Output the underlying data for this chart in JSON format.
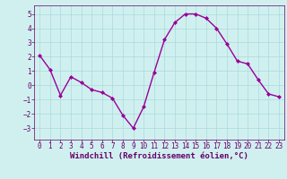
{
  "x": [
    0,
    1,
    2,
    3,
    4,
    5,
    6,
    7,
    8,
    9,
    10,
    11,
    12,
    13,
    14,
    15,
    16,
    17,
    18,
    19,
    20,
    21,
    22,
    23
  ],
  "y": [
    2.1,
    1.1,
    -0.7,
    0.6,
    0.2,
    -0.3,
    -0.5,
    -0.9,
    -2.1,
    -3.0,
    -1.5,
    0.9,
    3.2,
    4.4,
    5.0,
    5.0,
    4.7,
    4.0,
    2.9,
    1.7,
    1.5,
    0.4,
    -0.6,
    -0.8
  ],
  "line_color": "#990099",
  "marker": "D",
  "marker_size": 2,
  "bg_color": "#d0f0f0",
  "grid_color": "#aadada",
  "xlabel": "Windchill (Refroidissement éolien,°C)",
  "xlabel_color": "#660066",
  "tick_color": "#660066",
  "ylim": [
    -3.8,
    5.6
  ],
  "yticks": [
    -3,
    -2,
    -1,
    0,
    1,
    2,
    3,
    4,
    5
  ],
  "xlim": [
    -0.5,
    23.5
  ],
  "xticks": [
    0,
    1,
    2,
    3,
    4,
    5,
    6,
    7,
    8,
    9,
    10,
    11,
    12,
    13,
    14,
    15,
    16,
    17,
    18,
    19,
    20,
    21,
    22,
    23
  ],
  "xlabel_fontsize": 6.5,
  "tick_fontsize": 5.5,
  "linewidth": 1.0
}
